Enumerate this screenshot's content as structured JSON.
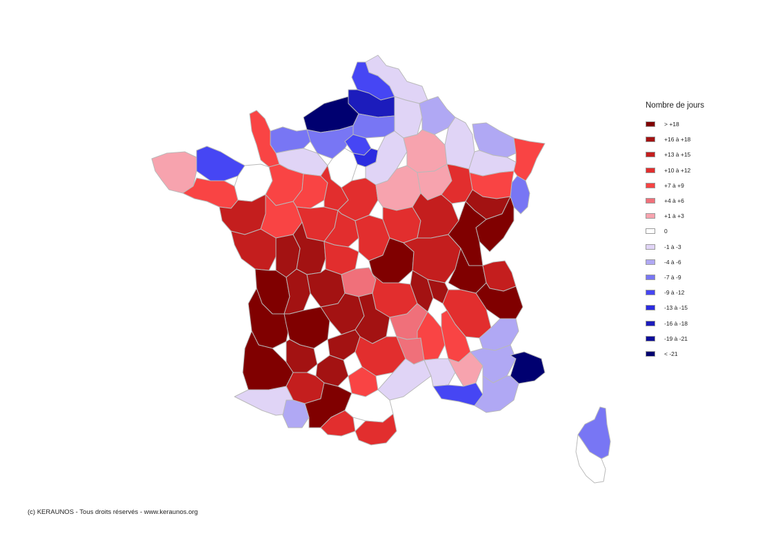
{
  "legend": {
    "title": "Nombre de jours",
    "items": [
      {
        "label": "> +18",
        "color": "#800000"
      },
      {
        "label": "+16 à +18",
        "color": "#a31212"
      },
      {
        "label": "+13 à +15",
        "color": "#c41e1e"
      },
      {
        "label": "+10 à +12",
        "color": "#e22e2e"
      },
      {
        "label": "+7 à +9",
        "color": "#f94444"
      },
      {
        "label": "+4 à +6",
        "color": "#f0707a"
      },
      {
        "label": "+1 à +3",
        "color": "#f7a3ae"
      },
      {
        "label": "0",
        "color": "#ffffff"
      },
      {
        "label": "-1 à -3",
        "color": "#e0d4f6"
      },
      {
        "label": "-4 à -6",
        "color": "#b0a8f4"
      },
      {
        "label": "-7 à -9",
        "color": "#7876f4"
      },
      {
        "label": "-9 à -12",
        "color": "#4646f4"
      },
      {
        "label": "-13 à -15",
        "color": "#2b2be0"
      },
      {
        "label": "-16 à -18",
        "color": "#1c1cbc"
      },
      {
        "label": "-19 à -21",
        "color": "#0c0c9a"
      },
      {
        "label": "< -21",
        "color": "#000070"
      }
    ]
  },
  "credit": "(c) KERAUNOS - Tous droits réservés - www.keraunos.org"
}
